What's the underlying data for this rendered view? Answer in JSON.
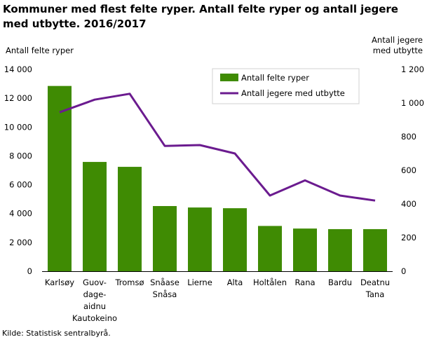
{
  "chart_data": {
    "type": "bar",
    "title": "Kommuner med flest felte ryper. Antall felte ryper og antall jegere med utbytte. 2016/2017",
    "ylabel_left": "Antall felte ryper",
    "ylabel_right": "Antall jegere med utbytte",
    "categories": [
      [
        "Karlsøy"
      ],
      [
        "Guov-",
        "dage-",
        "aidnu",
        "Kautokeino"
      ],
      [
        "Tromsø"
      ],
      [
        "Snåase",
        "Snåsa"
      ],
      [
        "Lierne"
      ],
      [
        "Alta"
      ],
      [
        "Holtålen"
      ],
      [
        "Rana"
      ],
      [
        "Bardu"
      ],
      [
        "Deatnu",
        "Tana"
      ]
    ],
    "series": [
      {
        "name": "Antall felte ryper",
        "type": "bar",
        "axis": "left",
        "color": "#3f8b03",
        "values": [
          12850,
          7580,
          7240,
          4520,
          4420,
          4370,
          3140,
          2960,
          2920,
          2920
        ]
      },
      {
        "name": "Antall jegere med utbytte",
        "type": "line",
        "axis": "right",
        "color": "#6b1b8f",
        "values": [
          945,
          1020,
          1055,
          745,
          750,
          700,
          450,
          540,
          450,
          420
        ]
      }
    ],
    "ylim_left": [
      0,
      14000
    ],
    "yticks_left": [
      0,
      2000,
      4000,
      6000,
      8000,
      10000,
      12000,
      14000
    ],
    "ytick_labels_left": [
      "0",
      "2 000",
      "4 000",
      "6 000",
      "8 000",
      "10 000",
      "12 000",
      "14 000"
    ],
    "ylim_right": [
      0,
      1200
    ],
    "yticks_right": [
      0,
      200,
      400,
      600,
      800,
      1000,
      1200
    ],
    "ytick_labels_right": [
      "0",
      "200",
      "400",
      "600",
      "800",
      "1 000",
      "1 200"
    ],
    "grid": false,
    "legend": "top-right"
  },
  "source": "Kilde: Statistisk sentralbyrå."
}
